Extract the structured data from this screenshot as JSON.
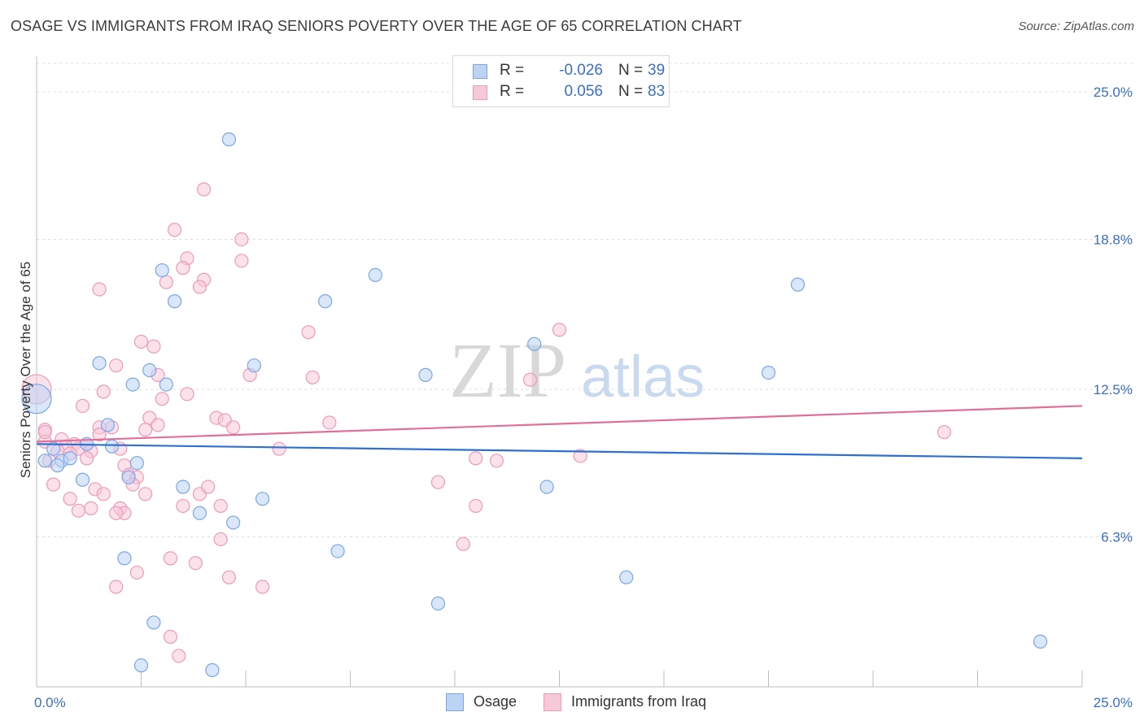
{
  "title": "OSAGE VS IMMIGRANTS FROM IRAQ SENIORS POVERTY OVER THE AGE OF 65 CORRELATION CHART",
  "source": "Source: ZipAtlas.com",
  "watermark": {
    "zip": "ZIP",
    "atlas": "atlas"
  },
  "legend_top": {
    "rows": [
      {
        "r_label": "R =",
        "r_value": "-0.026",
        "n_label": "N =",
        "n_value": "39",
        "color": "#7aa6e8",
        "fill": "#bcd3f4"
      },
      {
        "r_label": "R =",
        "r_value": "0.056",
        "n_label": "N =",
        "n_value": "83",
        "color": "#ee9ab8",
        "fill": "#f7c9d8"
      }
    ]
  },
  "legend_bottom": {
    "osage": "Osage",
    "iraq": "Immigrants from Iraq"
  },
  "colors": {
    "osage_stroke": "#7aa6e8",
    "osage_fill": "#bcd3f4",
    "osage_line": "#2f6fcf",
    "iraq_stroke": "#ee9ab8",
    "iraq_fill": "#f7c9d8",
    "iraq_line": "#e0709a",
    "tick_label": "#3a6fc4",
    "grid": "#dddddd"
  },
  "chart_data": {
    "type": "scatter",
    "ylabel": "Seniors Poverty Over the Age of 65",
    "xlabel": "",
    "xlim": [
      0,
      25
    ],
    "ylim": [
      0,
      26.5
    ],
    "x_tick_labels": [
      {
        "value": 0,
        "label": "0.0%"
      },
      {
        "value": 25,
        "label": "25.0%"
      }
    ],
    "y_tick_labels": [
      {
        "value": 6.3,
        "label": "6.3%"
      },
      {
        "value": 12.5,
        "label": "12.5%"
      },
      {
        "value": 18.8,
        "label": "18.8%"
      },
      {
        "value": 25.0,
        "label": "25.0%"
      }
    ],
    "series": [
      {
        "name": "Osage",
        "r": -0.026,
        "n": 39,
        "trend": {
          "x": [
            0,
            25
          ],
          "y": [
            10.2,
            9.6
          ]
        },
        "points": [
          {
            "x": 4.6,
            "y": 23.0
          },
          {
            "x": 3.0,
            "y": 17.5
          },
          {
            "x": 3.3,
            "y": 16.2
          },
          {
            "x": 8.1,
            "y": 17.3
          },
          {
            "x": 18.2,
            "y": 16.9
          },
          {
            "x": 6.9,
            "y": 16.2
          },
          {
            "x": 11.9,
            "y": 14.4
          },
          {
            "x": 1.5,
            "y": 13.6
          },
          {
            "x": 2.7,
            "y": 13.3
          },
          {
            "x": 5.2,
            "y": 13.5
          },
          {
            "x": 9.3,
            "y": 13.1
          },
          {
            "x": 17.5,
            "y": 13.2
          },
          {
            "x": 2.3,
            "y": 12.7
          },
          {
            "x": 3.1,
            "y": 12.7
          },
          {
            "x": 1.2,
            "y": 10.2
          },
          {
            "x": 1.8,
            "y": 10.1
          },
          {
            "x": 1.7,
            "y": 11.0
          },
          {
            "x": 0.4,
            "y": 10.0
          },
          {
            "x": 0.6,
            "y": 9.5
          },
          {
            "x": 0.8,
            "y": 9.6
          },
          {
            "x": 0.5,
            "y": 9.3
          },
          {
            "x": 1.1,
            "y": 8.7
          },
          {
            "x": 2.2,
            "y": 8.8
          },
          {
            "x": 3.5,
            "y": 8.4
          },
          {
            "x": 5.4,
            "y": 7.9
          },
          {
            "x": 12.2,
            "y": 8.4
          },
          {
            "x": 3.9,
            "y": 7.3
          },
          {
            "x": 4.7,
            "y": 6.9
          },
          {
            "x": 2.1,
            "y": 5.4
          },
          {
            "x": 7.2,
            "y": 5.7
          },
          {
            "x": 14.1,
            "y": 4.6
          },
          {
            "x": 9.6,
            "y": 3.5
          },
          {
            "x": 2.8,
            "y": 2.7
          },
          {
            "x": 24.0,
            "y": 1.9
          },
          {
            "x": 2.5,
            "y": 0.9
          },
          {
            "x": 4.2,
            "y": 0.7
          },
          {
            "x": 0.2,
            "y": 9.5
          },
          {
            "x": 2.4,
            "y": 9.4
          },
          {
            "x": 0.0,
            "y": 12.1
          }
        ]
      },
      {
        "name": "Immigrants from Iraq",
        "r": 0.056,
        "n": 83,
        "trend": {
          "x": [
            0,
            25
          ],
          "y": [
            10.3,
            11.8
          ]
        },
        "points": [
          {
            "x": 4.0,
            "y": 20.9
          },
          {
            "x": 3.3,
            "y": 19.2
          },
          {
            "x": 4.9,
            "y": 18.8
          },
          {
            "x": 3.6,
            "y": 18.0
          },
          {
            "x": 4.9,
            "y": 17.9
          },
          {
            "x": 3.5,
            "y": 17.6
          },
          {
            "x": 3.1,
            "y": 17.0
          },
          {
            "x": 4.0,
            "y": 17.1
          },
          {
            "x": 3.9,
            "y": 16.8
          },
          {
            "x": 1.5,
            "y": 16.7
          },
          {
            "x": 6.5,
            "y": 14.9
          },
          {
            "x": 12.5,
            "y": 15.0
          },
          {
            "x": 2.5,
            "y": 14.5
          },
          {
            "x": 2.8,
            "y": 14.3
          },
          {
            "x": 1.9,
            "y": 13.5
          },
          {
            "x": 2.9,
            "y": 13.1
          },
          {
            "x": 5.1,
            "y": 13.1
          },
          {
            "x": 6.6,
            "y": 13.0
          },
          {
            "x": 11.8,
            "y": 12.9
          },
          {
            "x": 1.6,
            "y": 12.4
          },
          {
            "x": 3.6,
            "y": 12.3
          },
          {
            "x": 3.0,
            "y": 12.1
          },
          {
            "x": 1.1,
            "y": 11.8
          },
          {
            "x": 2.7,
            "y": 11.3
          },
          {
            "x": 4.3,
            "y": 11.3
          },
          {
            "x": 4.5,
            "y": 11.2
          },
          {
            "x": 7.0,
            "y": 11.1
          },
          {
            "x": 2.9,
            "y": 11.0
          },
          {
            "x": 1.5,
            "y": 10.9
          },
          {
            "x": 1.8,
            "y": 10.9
          },
          {
            "x": 2.6,
            "y": 10.8
          },
          {
            "x": 4.7,
            "y": 10.9
          },
          {
            "x": 0.2,
            "y": 10.8
          },
          {
            "x": 0.2,
            "y": 10.3
          },
          {
            "x": 0.6,
            "y": 10.4
          },
          {
            "x": 0.9,
            "y": 10.2
          },
          {
            "x": 1.2,
            "y": 10.2
          },
          {
            "x": 0.7,
            "y": 10.1
          },
          {
            "x": 1.0,
            "y": 10.0
          },
          {
            "x": 0.5,
            "y": 9.9
          },
          {
            "x": 0.8,
            "y": 9.8
          },
          {
            "x": 1.3,
            "y": 9.9
          },
          {
            "x": 1.2,
            "y": 9.6
          },
          {
            "x": 5.8,
            "y": 10.0
          },
          {
            "x": 10.5,
            "y": 9.6
          },
          {
            "x": 13.0,
            "y": 9.7
          },
          {
            "x": 11.0,
            "y": 9.5
          },
          {
            "x": 21.7,
            "y": 10.7
          },
          {
            "x": 2.1,
            "y": 9.3
          },
          {
            "x": 2.2,
            "y": 8.9
          },
          {
            "x": 2.4,
            "y": 8.8
          },
          {
            "x": 2.3,
            "y": 8.5
          },
          {
            "x": 1.4,
            "y": 8.3
          },
          {
            "x": 1.6,
            "y": 8.1
          },
          {
            "x": 0.4,
            "y": 8.5
          },
          {
            "x": 3.9,
            "y": 8.1
          },
          {
            "x": 4.1,
            "y": 8.4
          },
          {
            "x": 2.6,
            "y": 8.1
          },
          {
            "x": 9.6,
            "y": 8.6
          },
          {
            "x": 0.8,
            "y": 7.9
          },
          {
            "x": 2.0,
            "y": 7.5
          },
          {
            "x": 2.1,
            "y": 7.3
          },
          {
            "x": 1.9,
            "y": 7.3
          },
          {
            "x": 3.5,
            "y": 7.6
          },
          {
            "x": 4.4,
            "y": 7.6
          },
          {
            "x": 1.0,
            "y": 7.4
          },
          {
            "x": 1.3,
            "y": 7.5
          },
          {
            "x": 10.5,
            "y": 7.6
          },
          {
            "x": 4.4,
            "y": 6.2
          },
          {
            "x": 10.2,
            "y": 6.0
          },
          {
            "x": 3.2,
            "y": 5.4
          },
          {
            "x": 3.8,
            "y": 5.2
          },
          {
            "x": 2.4,
            "y": 4.8
          },
          {
            "x": 4.6,
            "y": 4.6
          },
          {
            "x": 1.9,
            "y": 4.2
          },
          {
            "x": 5.4,
            "y": 4.2
          },
          {
            "x": 3.2,
            "y": 2.1
          },
          {
            "x": 3.4,
            "y": 1.3
          },
          {
            "x": 0.2,
            "y": 10.7
          },
          {
            "x": 0.3,
            "y": 9.5
          },
          {
            "x": 1.5,
            "y": 10.6
          },
          {
            "x": 0.0,
            "y": 12.5
          },
          {
            "x": 2.0,
            "y": 10.0
          }
        ]
      }
    ]
  }
}
